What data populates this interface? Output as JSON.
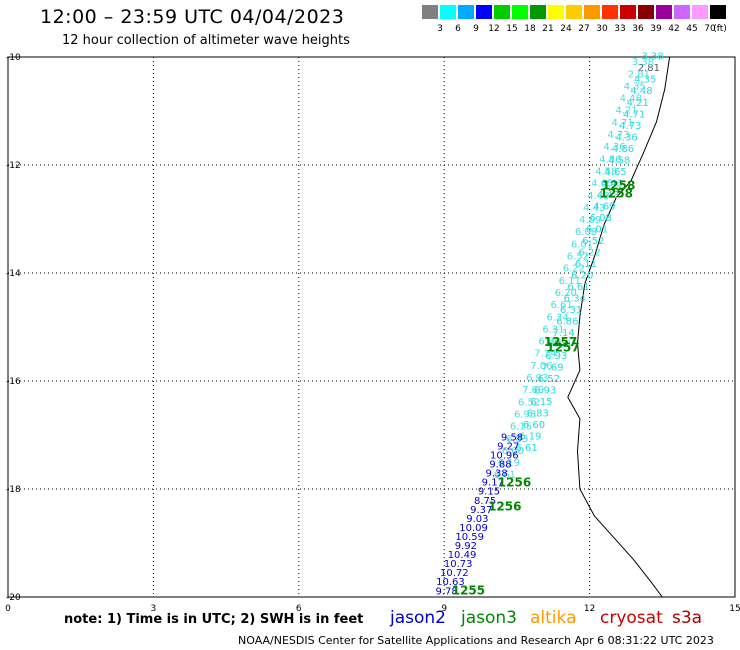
{
  "header": {
    "title": "12:00 – 23:59 UTC 04/04/2023",
    "subtitle": "12 hour collection of altimeter wave heights"
  },
  "scale": {
    "colors": [
      "#808080",
      "#00ffff",
      "#00aaff",
      "#0000ff",
      "#00cc00",
      "#00ff00",
      "#009900",
      "#ffff00",
      "#ffcc00",
      "#ff9900",
      "#ff3300",
      "#cc0000",
      "#880000",
      "#990099",
      "#cc66ff",
      "#ff99ff",
      "#000000"
    ],
    "labels": [
      "3",
      "6",
      "9",
      "12",
      "15",
      "18",
      "21",
      "24",
      "27",
      "30",
      "33",
      "36",
      "39",
      "42",
      "45",
      "70",
      "(ft)"
    ]
  },
  "axes": {
    "y_ticks": [
      "-10",
      "-12",
      "-14",
      "-16",
      "-18",
      "-20"
    ],
    "x_ticks": [
      "0",
      "3",
      "6",
      "9",
      "12",
      "15"
    ],
    "x_range": [
      0,
      15
    ],
    "y_range": [
      -20,
      -10
    ]
  },
  "track_cyan": [
    "3.38",
    "2.81",
    "4.35",
    "4.48",
    "4.21",
    "4.71",
    "4.73",
    "4.36",
    "4.86",
    "4.58",
    "4.65",
    "4.43",
    "4.43",
    "4.69",
    "6.08",
    "6.01",
    "6.52",
    "6.22",
    "6.11",
    "6.20",
    "6.61",
    "6.34",
    "6.31",
    "6.86",
    "7.14",
    "7.06",
    "6.93",
    "7.69",
    "6.52",
    "6.93",
    "6.15",
    "6.83",
    "6.60",
    "6.19",
    "6.61"
  ],
  "track_blue": [
    "9.58",
    "9.27",
    "10.96",
    "9.88",
    "9.38",
    "9.17",
    "9.15",
    "8.75",
    "9.37",
    "9.03",
    "10.09",
    "10.59",
    "9.92",
    "10.49",
    "10.73",
    "10.72",
    "10.63",
    "9.78"
  ],
  "time_labels": [
    {
      "text": "1258",
      "lat": -12.45,
      "lon": 12.6
    },
    {
      "text": "1258",
      "lat": -12.6,
      "lon": 12.55
    },
    {
      "text": "1257",
      "lat": -15.35,
      "lon": 11.4
    },
    {
      "text": "1257",
      "lat": -15.45,
      "lon": 11.45
    },
    {
      "text": "1256",
      "lat": -17.95,
      "lon": 10.45
    },
    {
      "text": "1256",
      "lat": -18.4,
      "lon": 10.25
    },
    {
      "text": "1255",
      "lat": -19.95,
      "lon": 9.5
    }
  ],
  "coastline": [
    [
      13.65,
      -10.0
    ],
    [
      13.55,
      -10.6
    ],
    [
      13.38,
      -11.2
    ],
    [
      13.1,
      -11.8
    ],
    [
      12.85,
      -12.3
    ],
    [
      12.55,
      -12.6
    ],
    [
      12.3,
      -13.1
    ],
    [
      12.1,
      -13.7
    ],
    [
      11.9,
      -14.2
    ],
    [
      11.8,
      -14.8
    ],
    [
      11.75,
      -15.3
    ],
    [
      11.8,
      -15.8
    ],
    [
      11.55,
      -16.3
    ],
    [
      11.8,
      -16.7
    ],
    [
      11.75,
      -17.3
    ],
    [
      11.8,
      -18.0
    ],
    [
      12.1,
      -18.5
    ],
    [
      12.5,
      -18.9
    ],
    [
      12.9,
      -19.3
    ],
    [
      13.25,
      -19.7
    ],
    [
      13.5,
      -20.0
    ]
  ],
  "legend": {
    "note": "note: 1) Time is in UTC; 2) SWH is in feet",
    "sats": [
      {
        "name": "jason2",
        "color": "#0000cc"
      },
      {
        "name": "jason3",
        "color": "#008800"
      },
      {
        "name": "altika",
        "color": "#ff9900"
      },
      {
        "name": "cryosat",
        "color": "#cc0000"
      },
      {
        "name": "s3a",
        "color": "#aa0000"
      }
    ],
    "credit": "NOAA/NESDIS Center for Satellite Applications and Research    Apr  6 08:31:22 UTC 2023"
  }
}
